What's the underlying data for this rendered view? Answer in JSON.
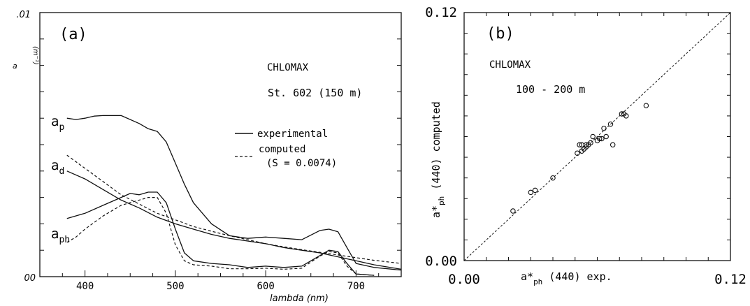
{
  "chart_data": [
    {
      "type": "line",
      "panel_label": "(a)",
      "annotation_title": "CHLOMAX",
      "annotation_station": "St. 602 (150 m)",
      "xlabel": "lambda (nm)",
      "ylabel": "a",
      "ylabel_unit": "(m⁻¹)",
      "xlim": [
        350,
        750
      ],
      "ylim": [
        0,
        0.01
      ],
      "x_ticks": [
        400,
        500,
        600,
        700
      ],
      "y_tick_labels": [
        {
          "value": 0.01,
          "label": ".01"
        },
        {
          "value": 0,
          "label": "00"
        }
      ],
      "legend": {
        "placement": "center-right",
        "experimental_label": "experimental",
        "computed_label": "computed",
        "computed_note": "(S = 0.0074)"
      },
      "curve_labels": {
        "ap": {
          "base": "a",
          "sub": "p"
        },
        "ad": {
          "base": "a",
          "sub": "d"
        },
        "aph": {
          "base": "a",
          "sub": "ph"
        }
      },
      "series": [
        {
          "key": "ap",
          "style": "experimental",
          "x": [
            380,
            390,
            400,
            410,
            420,
            440,
            460,
            470,
            480,
            490,
            500,
            510,
            520,
            540,
            560,
            580,
            600,
            620,
            640,
            660,
            670,
            680,
            690,
            700,
            720,
            750
          ],
          "y": [
            0.006,
            0.00595,
            0.006,
            0.00608,
            0.0061,
            0.0061,
            0.0058,
            0.0056,
            0.0055,
            0.0051,
            0.0043,
            0.0035,
            0.0028,
            0.002,
            0.00155,
            0.00145,
            0.0015,
            0.00145,
            0.0014,
            0.00175,
            0.0018,
            0.0017,
            0.0011,
            0.0005,
            0.00035,
            0.00025
          ]
        },
        {
          "key": "ad",
          "style": "experimental",
          "x": [
            380,
            400,
            420,
            440,
            460,
            480,
            500,
            520,
            540,
            560,
            580,
            600,
            620,
            640,
            660,
            680,
            700,
            720,
            750
          ],
          "y": [
            0.004,
            0.0037,
            0.0033,
            0.0029,
            0.0026,
            0.00225,
            0.002,
            0.0018,
            0.0016,
            0.00145,
            0.00135,
            0.00125,
            0.0011,
            0.001,
            0.0009,
            0.00075,
            0.0006,
            0.00045,
            0.00028
          ]
        },
        {
          "key": "aph",
          "style": "experimental",
          "x": [
            380,
            400,
            420,
            440,
            450,
            460,
            470,
            480,
            490,
            500,
            510,
            520,
            540,
            560,
            580,
            600,
            620,
            640,
            660,
            670,
            680,
            690,
            700,
            720
          ],
          "y": [
            0.0022,
            0.0024,
            0.0027,
            0.003,
            0.00315,
            0.0031,
            0.0032,
            0.0032,
            0.0028,
            0.0018,
            0.0009,
            0.0006,
            0.0005,
            0.00045,
            0.00035,
            0.0004,
            0.00035,
            0.0004,
            0.0008,
            0.001,
            0.00095,
            0.0005,
            0.0001,
            5e-05
          ]
        },
        {
          "key": "ad_computed",
          "style": "computed",
          "x": [
            380,
            400,
            420,
            440,
            460,
            480,
            500,
            520,
            540,
            560,
            580,
            600,
            620,
            640,
            660,
            680,
            700,
            720,
            750
          ],
          "y": [
            0.0046,
            0.0041,
            0.0036,
            0.0031,
            0.00275,
            0.0024,
            0.00215,
            0.0019,
            0.00172,
            0.00155,
            0.0014,
            0.00125,
            0.00113,
            0.00102,
            0.00092,
            0.00082,
            0.00072,
            0.00062,
            0.0005
          ]
        },
        {
          "key": "aph_computed",
          "style": "computed",
          "x": [
            380,
            390,
            400,
            420,
            440,
            460,
            470,
            480,
            490,
            500,
            510,
            520,
            540,
            560,
            580,
            600,
            620,
            640,
            660,
            670,
            680,
            690,
            700,
            720
          ],
          "y": [
            0.0013,
            0.0015,
            0.0018,
            0.0023,
            0.0027,
            0.0029,
            0.003,
            0.003,
            0.0024,
            0.0012,
            0.0006,
            0.00045,
            0.0004,
            0.0003,
            0.0003,
            0.00032,
            0.00028,
            0.00032,
            0.00078,
            0.00095,
            0.0009,
            0.0004,
            0.0001,
            5e-05
          ]
        }
      ]
    },
    {
      "type": "scatter",
      "panel_label": "(b)",
      "annotation_title": "CHLOMAX",
      "annotation_depth": "100 - 200 m",
      "xlabel": {
        "base": "a*",
        "sub": "ph",
        "rest": " (440) exp."
      },
      "ylabel": {
        "base": "a*",
        "sub": "ph",
        "rest": " (440) computed"
      },
      "xlim": [
        0,
        0.12
      ],
      "ylim": [
        0,
        0.12
      ],
      "x_tick_labels": [
        "0.00",
        "0.12"
      ],
      "y_tick_labels": [
        "0.00",
        "0.12"
      ],
      "reference_line": "1:1",
      "points": {
        "x": [
          0.022,
          0.03,
          0.032,
          0.04,
          0.051,
          0.052,
          0.053,
          0.053,
          0.054,
          0.055,
          0.055,
          0.056,
          0.057,
          0.058,
          0.06,
          0.061,
          0.062,
          0.063,
          0.064,
          0.066,
          0.067,
          0.071,
          0.072,
          0.073,
          0.082
        ],
        "y": [
          0.024,
          0.033,
          0.034,
          0.04,
          0.052,
          0.056,
          0.053,
          0.056,
          0.054,
          0.055,
          0.056,
          0.056,
          0.057,
          0.06,
          0.058,
          0.059,
          0.059,
          0.064,
          0.06,
          0.066,
          0.056,
          0.071,
          0.071,
          0.07,
          0.075
        ]
      }
    }
  ]
}
